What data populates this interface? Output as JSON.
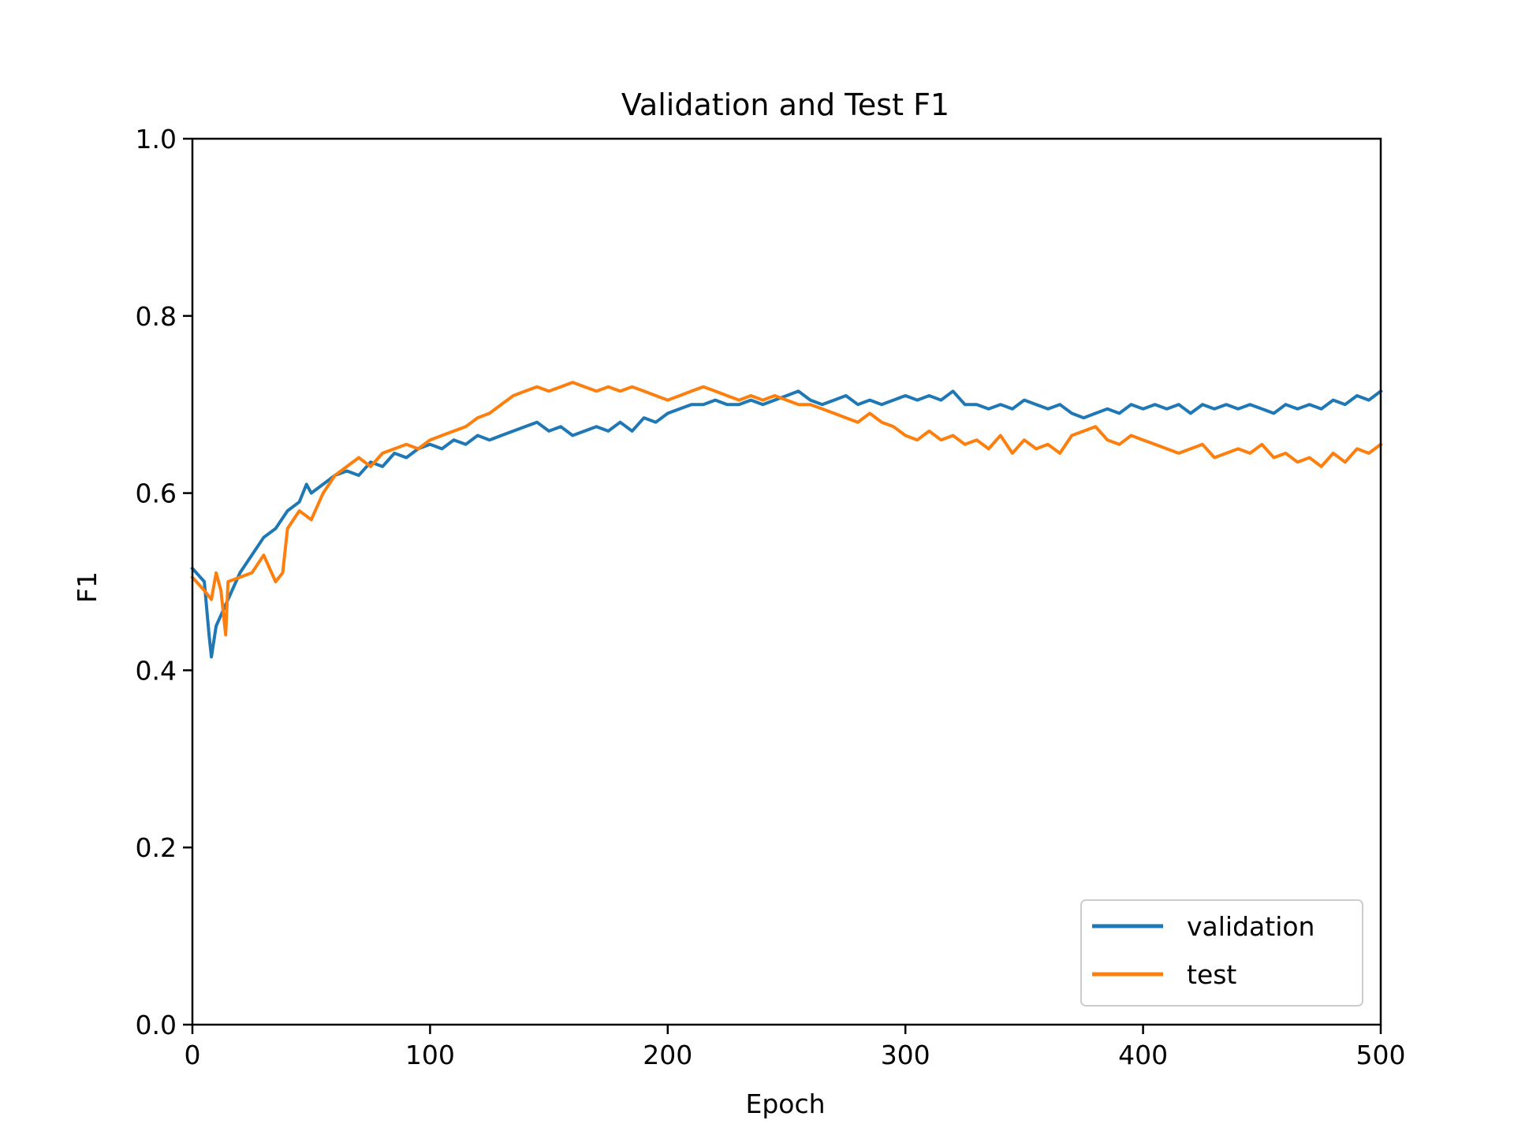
{
  "chart_data": {
    "type": "line",
    "title": "Validation and Test F1",
    "xlabel": "Epoch",
    "ylabel": "F1",
    "xlim": [
      0,
      500
    ],
    "ylim": [
      0.0,
      1.0
    ],
    "xticks": [
      "0",
      "100",
      "200",
      "300",
      "400",
      "500"
    ],
    "yticks": [
      "0.0",
      "0.2",
      "0.4",
      "0.6",
      "0.8",
      "1.0"
    ],
    "grid": false,
    "legend_position": "lower-right",
    "series": [
      {
        "name": "validation",
        "color": "#1f77b4",
        "x": [
          0,
          5,
          7,
          8,
          10,
          15,
          20,
          25,
          30,
          35,
          40,
          45,
          48,
          50,
          55,
          60,
          65,
          70,
          75,
          80,
          85,
          90,
          95,
          100,
          105,
          110,
          115,
          120,
          125,
          130,
          135,
          140,
          145,
          150,
          155,
          160,
          165,
          170,
          175,
          180,
          185,
          190,
          195,
          200,
          205,
          210,
          215,
          220,
          225,
          230,
          235,
          240,
          245,
          250,
          255,
          260,
          265,
          270,
          275,
          280,
          285,
          290,
          295,
          300,
          305,
          310,
          315,
          320,
          325,
          330,
          335,
          340,
          345,
          350,
          355,
          360,
          365,
          370,
          375,
          380,
          385,
          390,
          395,
          400,
          405,
          410,
          415,
          420,
          425,
          430,
          435,
          440,
          445,
          450,
          455,
          460,
          465,
          470,
          475,
          480,
          485,
          490,
          495,
          500
        ],
        "values": [
          0.515,
          0.5,
          0.44,
          0.415,
          0.45,
          0.48,
          0.51,
          0.53,
          0.55,
          0.56,
          0.58,
          0.59,
          0.61,
          0.6,
          0.61,
          0.62,
          0.625,
          0.62,
          0.635,
          0.63,
          0.645,
          0.64,
          0.65,
          0.655,
          0.65,
          0.66,
          0.655,
          0.665,
          0.66,
          0.665,
          0.67,
          0.675,
          0.68,
          0.67,
          0.675,
          0.665,
          0.67,
          0.675,
          0.67,
          0.68,
          0.67,
          0.685,
          0.68,
          0.69,
          0.695,
          0.7,
          0.7,
          0.705,
          0.7,
          0.7,
          0.705,
          0.7,
          0.705,
          0.71,
          0.715,
          0.705,
          0.7,
          0.705,
          0.71,
          0.7,
          0.705,
          0.7,
          0.705,
          0.71,
          0.705,
          0.71,
          0.705,
          0.715,
          0.7,
          0.7,
          0.695,
          0.7,
          0.695,
          0.705,
          0.7,
          0.695,
          0.7,
          0.69,
          0.685,
          0.69,
          0.695,
          0.69,
          0.7,
          0.695,
          0.7,
          0.695,
          0.7,
          0.69,
          0.7,
          0.695,
          0.7,
          0.695,
          0.7,
          0.695,
          0.69,
          0.7,
          0.695,
          0.7,
          0.695,
          0.705,
          0.7,
          0.71,
          0.705,
          0.715
        ]
      },
      {
        "name": "test",
        "color": "#ff7f0e",
        "x": [
          0,
          5,
          8,
          10,
          12,
          14,
          15,
          20,
          25,
          30,
          35,
          38,
          40,
          45,
          50,
          55,
          60,
          65,
          70,
          75,
          80,
          85,
          90,
          95,
          100,
          105,
          110,
          115,
          120,
          125,
          130,
          135,
          140,
          145,
          150,
          155,
          160,
          165,
          170,
          175,
          180,
          185,
          190,
          195,
          200,
          205,
          210,
          215,
          220,
          225,
          230,
          235,
          240,
          245,
          250,
          255,
          260,
          265,
          270,
          275,
          280,
          285,
          290,
          295,
          300,
          305,
          310,
          315,
          320,
          325,
          330,
          335,
          340,
          345,
          350,
          355,
          360,
          365,
          370,
          375,
          380,
          385,
          390,
          395,
          400,
          405,
          410,
          415,
          420,
          425,
          430,
          435,
          440,
          445,
          450,
          455,
          460,
          465,
          470,
          475,
          480,
          485,
          490,
          495,
          500
        ],
        "values": [
          0.505,
          0.49,
          0.48,
          0.51,
          0.49,
          0.44,
          0.5,
          0.505,
          0.51,
          0.53,
          0.5,
          0.51,
          0.56,
          0.58,
          0.57,
          0.6,
          0.62,
          0.63,
          0.64,
          0.63,
          0.645,
          0.65,
          0.655,
          0.65,
          0.66,
          0.665,
          0.67,
          0.675,
          0.685,
          0.69,
          0.7,
          0.71,
          0.715,
          0.72,
          0.715,
          0.72,
          0.725,
          0.72,
          0.715,
          0.72,
          0.715,
          0.72,
          0.715,
          0.71,
          0.705,
          0.71,
          0.715,
          0.72,
          0.715,
          0.71,
          0.705,
          0.71,
          0.705,
          0.71,
          0.705,
          0.7,
          0.7,
          0.695,
          0.69,
          0.685,
          0.68,
          0.69,
          0.68,
          0.675,
          0.665,
          0.66,
          0.67,
          0.66,
          0.665,
          0.655,
          0.66,
          0.65,
          0.665,
          0.645,
          0.66,
          0.65,
          0.655,
          0.645,
          0.665,
          0.67,
          0.675,
          0.66,
          0.655,
          0.665,
          0.66,
          0.655,
          0.65,
          0.645,
          0.65,
          0.655,
          0.64,
          0.645,
          0.65,
          0.645,
          0.655,
          0.64,
          0.645,
          0.635,
          0.64,
          0.63,
          0.645,
          0.635,
          0.65,
          0.645,
          0.655
        ]
      }
    ]
  }
}
